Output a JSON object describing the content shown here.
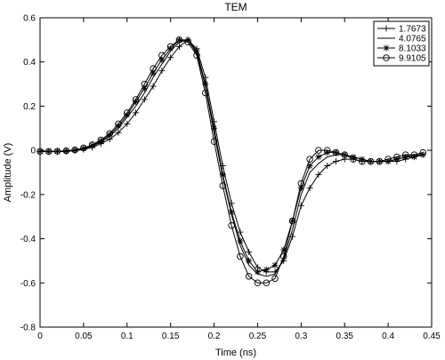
{
  "chart_data": {
    "type": "line",
    "title": "TEM",
    "xlabel": "Time (ns)",
    "ylabel": "Amplitude (V)",
    "xlim": [
      0,
      0.45
    ],
    "ylim": [
      -0.8,
      0.6
    ],
    "xticks": [
      "0",
      "0.05",
      "0.1",
      "0.15",
      "0.2",
      "0.25",
      "0.3",
      "0.35",
      "0.4",
      "0.45"
    ],
    "yticks": [
      "0.6",
      "0.4",
      "0.2",
      "0",
      "-0.2",
      "-0.4",
      "-0.6",
      "-0.8"
    ],
    "grid": false,
    "legend_position": "top-right",
    "x": [
      0,
      0.01,
      0.02,
      0.03,
      0.04,
      0.05,
      0.06,
      0.07,
      0.08,
      0.09,
      0.1,
      0.11,
      0.12,
      0.13,
      0.14,
      0.15,
      0.16,
      0.17,
      0.18,
      0.19,
      0.2,
      0.21,
      0.22,
      0.23,
      0.24,
      0.25,
      0.26,
      0.27,
      0.28,
      0.29,
      0.3,
      0.31,
      0.32,
      0.33,
      0.34,
      0.35,
      0.36,
      0.37,
      0.38,
      0.39,
      0.4,
      0.41,
      0.42,
      0.43,
      0.44
    ],
    "series": [
      {
        "name": "1.7673",
        "marker": "plus",
        "values": [
          -0.005,
          -0.006,
          -0.006,
          -0.005,
          -0.002,
          0.004,
          0.013,
          0.03,
          0.05,
          0.08,
          0.12,
          0.17,
          0.23,
          0.29,
          0.36,
          0.42,
          0.47,
          0.5,
          0.46,
          0.33,
          0.13,
          -0.07,
          -0.24,
          -0.37,
          -0.46,
          -0.53,
          -0.55,
          -0.55,
          -0.5,
          -0.39,
          -0.25,
          -0.17,
          -0.11,
          -0.07,
          -0.05,
          -0.04,
          -0.04,
          -0.05,
          -0.05,
          -0.05,
          -0.05,
          -0.05,
          -0.04,
          -0.03,
          -0.02
        ]
      },
      {
        "name": "4.0765",
        "marker": "none",
        "values": [
          -0.005,
          -0.005,
          -0.005,
          -0.004,
          0.0,
          0.007,
          0.018,
          0.037,
          0.063,
          0.1,
          0.15,
          0.2,
          0.26,
          0.33,
          0.39,
          0.45,
          0.49,
          0.5,
          0.44,
          0.29,
          0.08,
          -0.12,
          -0.29,
          -0.43,
          -0.52,
          -0.56,
          -0.57,
          -0.56,
          -0.49,
          -0.36,
          -0.2,
          -0.1,
          -0.06,
          -0.03,
          -0.02,
          -0.02,
          -0.03,
          -0.04,
          -0.05,
          -0.05,
          -0.05,
          -0.04,
          -0.03,
          -0.02,
          -0.02
        ]
      },
      {
        "name": "8.1033",
        "marker": "star",
        "values": [
          -0.005,
          -0.005,
          -0.004,
          -0.003,
          0.001,
          0.009,
          0.022,
          0.042,
          0.07,
          0.11,
          0.16,
          0.22,
          0.28,
          0.35,
          0.41,
          0.46,
          0.5,
          0.5,
          0.45,
          0.3,
          0.1,
          -0.11,
          -0.28,
          -0.41,
          -0.5,
          -0.55,
          -0.54,
          -0.52,
          -0.45,
          -0.32,
          -0.17,
          -0.07,
          -0.03,
          -0.01,
          -0.01,
          -0.02,
          -0.03,
          -0.04,
          -0.05,
          -0.05,
          -0.05,
          -0.04,
          -0.03,
          -0.03,
          -0.02
        ]
      },
      {
        "name": "9.9105",
        "marker": "circle",
        "values": [
          -0.005,
          -0.005,
          -0.004,
          -0.002,
          0.002,
          0.011,
          0.025,
          0.047,
          0.076,
          0.12,
          0.17,
          0.23,
          0.3,
          0.37,
          0.43,
          0.47,
          0.5,
          0.49,
          0.43,
          0.26,
          0.04,
          -0.16,
          -0.34,
          -0.48,
          -0.57,
          -0.6,
          -0.6,
          -0.58,
          -0.48,
          -0.32,
          -0.15,
          -0.04,
          0.0,
          0.0,
          -0.01,
          -0.02,
          -0.04,
          -0.05,
          -0.05,
          -0.05,
          -0.04,
          -0.03,
          -0.02,
          -0.02,
          -0.01
        ]
      }
    ]
  }
}
